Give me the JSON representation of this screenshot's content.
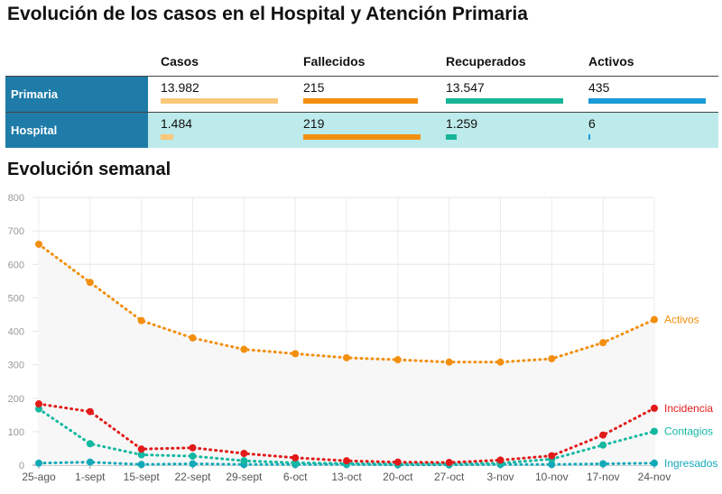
{
  "title": "Evolución de los casos en el Hospital y Atención Primaria",
  "summary": {
    "columns": [
      "Casos",
      "Fallecidos",
      "Recuperados",
      "Activos"
    ],
    "rows": [
      {
        "label": "Primaria",
        "values": [
          "13.982",
          "215",
          "13.547",
          "435"
        ],
        "fractions": [
          1.0,
          0.98,
          1.0,
          1.0
        ]
      },
      {
        "label": "Hospital",
        "values": [
          "1.484",
          "219",
          "1.259",
          "6"
        ],
        "fractions": [
          0.106,
          1.0,
          0.093,
          0.014
        ]
      }
    ],
    "colors": [
      "#f9c87a",
      "#f28f0e",
      "#17b597",
      "#1a9ad6"
    ]
  },
  "subtitle": "Evolución semanal",
  "chart_data": {
    "type": "line",
    "categories": [
      "25-ago",
      "1-sept",
      "15-sept",
      "22-sept",
      "29-sept",
      "6-oct",
      "13-oct",
      "20-oct",
      "27-oct",
      "3-nov",
      "10-nov",
      "17-nov",
      "24-nov"
    ],
    "ylim": [
      0,
      800
    ],
    "yticks": [
      "0",
      "100",
      "200",
      "300",
      "400",
      "500",
      "600",
      "700",
      "800"
    ],
    "grid": true,
    "series": [
      {
        "name": "Activos",
        "color": "#f28f0e",
        "values": [
          660,
          546,
          432,
          380,
          346,
          333,
          321,
          315,
          308,
          308,
          318,
          366,
          435
        ]
      },
      {
        "name": "Incidencia",
        "color": "#e21a1a",
        "values": [
          183,
          160,
          48,
          52,
          35,
          22,
          13,
          9,
          8,
          15,
          28,
          90,
          170
        ]
      },
      {
        "name": "Contagios",
        "color": "#13b8a1",
        "values": [
          168,
          64,
          31,
          27,
          13,
          7,
          5,
          4,
          4,
          6,
          18,
          60,
          101
        ]
      },
      {
        "name": "Ingresados",
        "color": "#13a9b8",
        "values": [
          6,
          9,
          2,
          4,
          2,
          2,
          2,
          1,
          1,
          2,
          2,
          4,
          6
        ]
      }
    ]
  }
}
